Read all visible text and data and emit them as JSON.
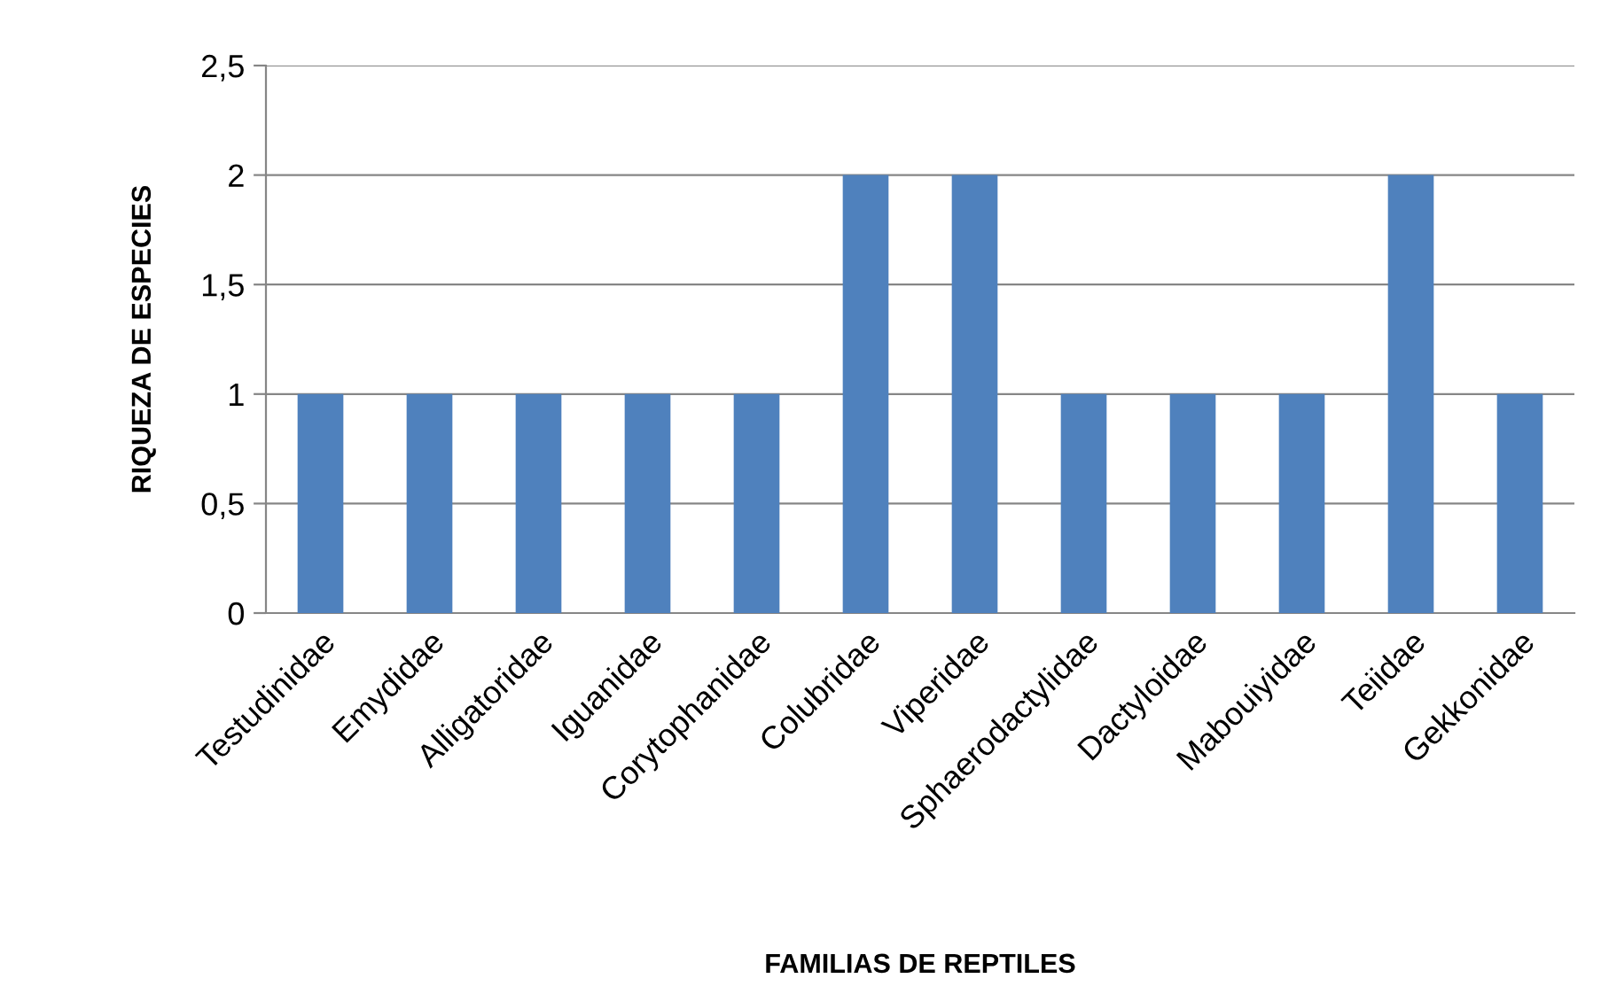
{
  "chart_data": {
    "type": "bar",
    "xlabel": "FAMILIAS DE REPTILES",
    "ylabel": "RIQUEZA DE ESPECIES",
    "categories": [
      "Testudinidae",
      "Emydidae",
      "Alligatoridae",
      "Iguanidae",
      "Corytophanidae",
      "Colubridae",
      "Viperidae",
      "Sphaerodactylidae",
      "Dactyloidae",
      "Mabouiyidae",
      "Teiidae",
      "Gekkonidae"
    ],
    "values": [
      1,
      1,
      1,
      1,
      1,
      2,
      2,
      1,
      1,
      1,
      2,
      1
    ],
    "color": "#4f81bd",
    "ylim": [
      0,
      2.5
    ],
    "yticks": [
      0,
      {
        "value": 0.5,
        "label": "0,5"
      },
      1,
      {
        "value": 1.5,
        "label": "1,5"
      },
      2,
      {
        "value": 2.5,
        "label": "2,5"
      }
    ],
    "grid": "y",
    "legend": false
  }
}
